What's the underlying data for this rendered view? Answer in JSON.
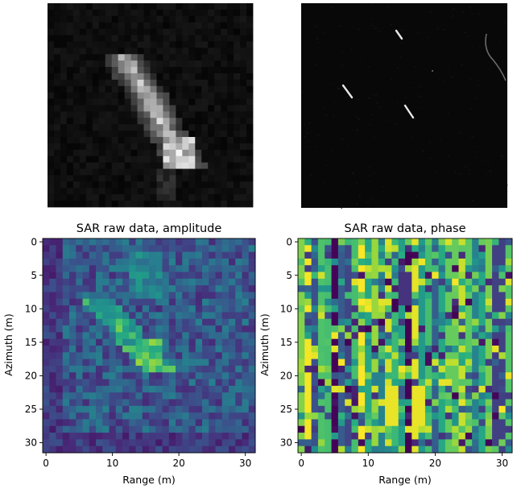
{
  "chart_data": [
    {
      "type": "heatmap",
      "title": "",
      "description_key": "grayscale-crop",
      "colormap": "gray",
      "grid_size": 32,
      "axes": "off"
    },
    {
      "type": "heatmap",
      "title": "",
      "colormap": "gray",
      "axes": "off"
    },
    {
      "type": "heatmap",
      "title": "SAR raw data, amplitude",
      "xlabel": "Range (m)",
      "ylabel": "Azimuth (m)",
      "colormap": "viridis",
      "xticks": [
        0,
        10,
        20,
        30
      ],
      "yticks": [
        0,
        5,
        10,
        15,
        20,
        25,
        30
      ],
      "xlim": [
        -0.5,
        31.5
      ],
      "ylim": [
        31.5,
        -0.5
      ],
      "grid_size": 32
    },
    {
      "type": "heatmap",
      "title": "SAR raw data, phase",
      "xlabel": "Range (m)",
      "ylabel": "Azimuth (m)",
      "colormap": "viridis",
      "xticks": [
        0,
        10,
        20,
        30
      ],
      "yticks": [
        0,
        5,
        10,
        15,
        20,
        25,
        30
      ],
      "xlim": [
        -0.5,
        31.5
      ],
      "ylim": [
        31.5,
        -0.5
      ],
      "grid_size": 32
    }
  ]
}
